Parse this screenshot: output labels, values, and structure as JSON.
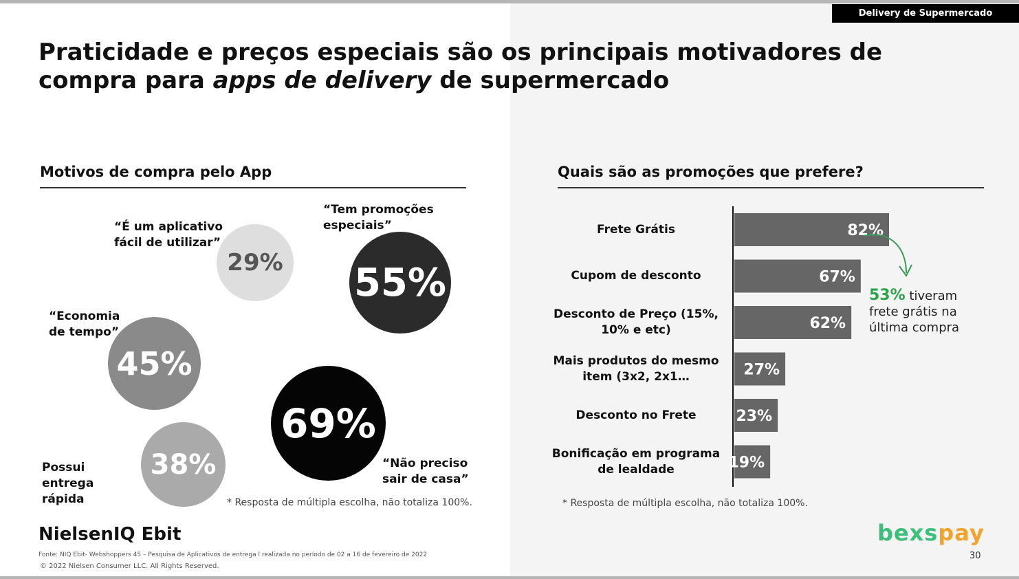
{
  "tag": "Delivery de Supermercado",
  "title": {
    "part1": "Praticidade e preços especiais são os principais motivadores de compra para ",
    "emph": "apps de delivery",
    "part2": " de supermercado"
  },
  "left": {
    "heading": "Motivos de compra pelo App",
    "bubbles": [
      {
        "value": "29%",
        "label": "“É um aplicativo fácil de utilizar”",
        "color": "#dedede",
        "text_color": "#555555"
      },
      {
        "value": "55%",
        "label": "“Tem promoções especiais”",
        "color": "#2b2b2b",
        "text_color": "#ffffff"
      },
      {
        "value": "45%",
        "label": "“Economia de tempo”",
        "color": "#8a8a8a",
        "text_color": "#ffffff"
      },
      {
        "value": "69%",
        "label": "“Não preciso sair de casa”",
        "color": "#050505",
        "text_color": "#ffffff"
      },
      {
        "value": "38%",
        "label": "Possui entrega rápida",
        "color": "#aaaaaa",
        "text_color": "#ffffff"
      }
    ],
    "note": "* Resposta de múltipla escolha, não totaliza 100%."
  },
  "right": {
    "heading": "Quais são as promoções que prefere?",
    "note": "* Resposta de múltipla escolha, não totaliza 100%.",
    "callout": {
      "highlight": "53%",
      "text": " tiveram frete grátis na última compra"
    }
  },
  "chart_data": {
    "type": "bar",
    "orientation": "horizontal",
    "categories": [
      "Frete Grátis",
      "Cupom de desconto",
      "Desconto de Preço (15%, 10% e etc)",
      "Mais produtos do mesmo item (3x2, 2x1…",
      "Desconto no Frete",
      "Bonificação em programa de lealdade"
    ],
    "values": [
      82,
      67,
      62,
      27,
      23,
      19
    ],
    "value_labels": [
      "82%",
      "67%",
      "62%",
      "27%",
      "23%",
      "19%"
    ],
    "bar_color": "#666666",
    "xlim": [
      0,
      100
    ]
  },
  "footer": {
    "logo": "NielsenIQ Ebit",
    "source": "Fonte: NIQ Ebit- Webshoppers 45 – Pesquisa de Aplicativos de entrega l realizada no período de 02 a 16 de fevereiro de 2022",
    "copyright": "© 2022 Nielsen Consumer LLC. All Rights Reserved.",
    "brand_left": "bexs",
    "brand_right": "pay",
    "page": "30"
  }
}
